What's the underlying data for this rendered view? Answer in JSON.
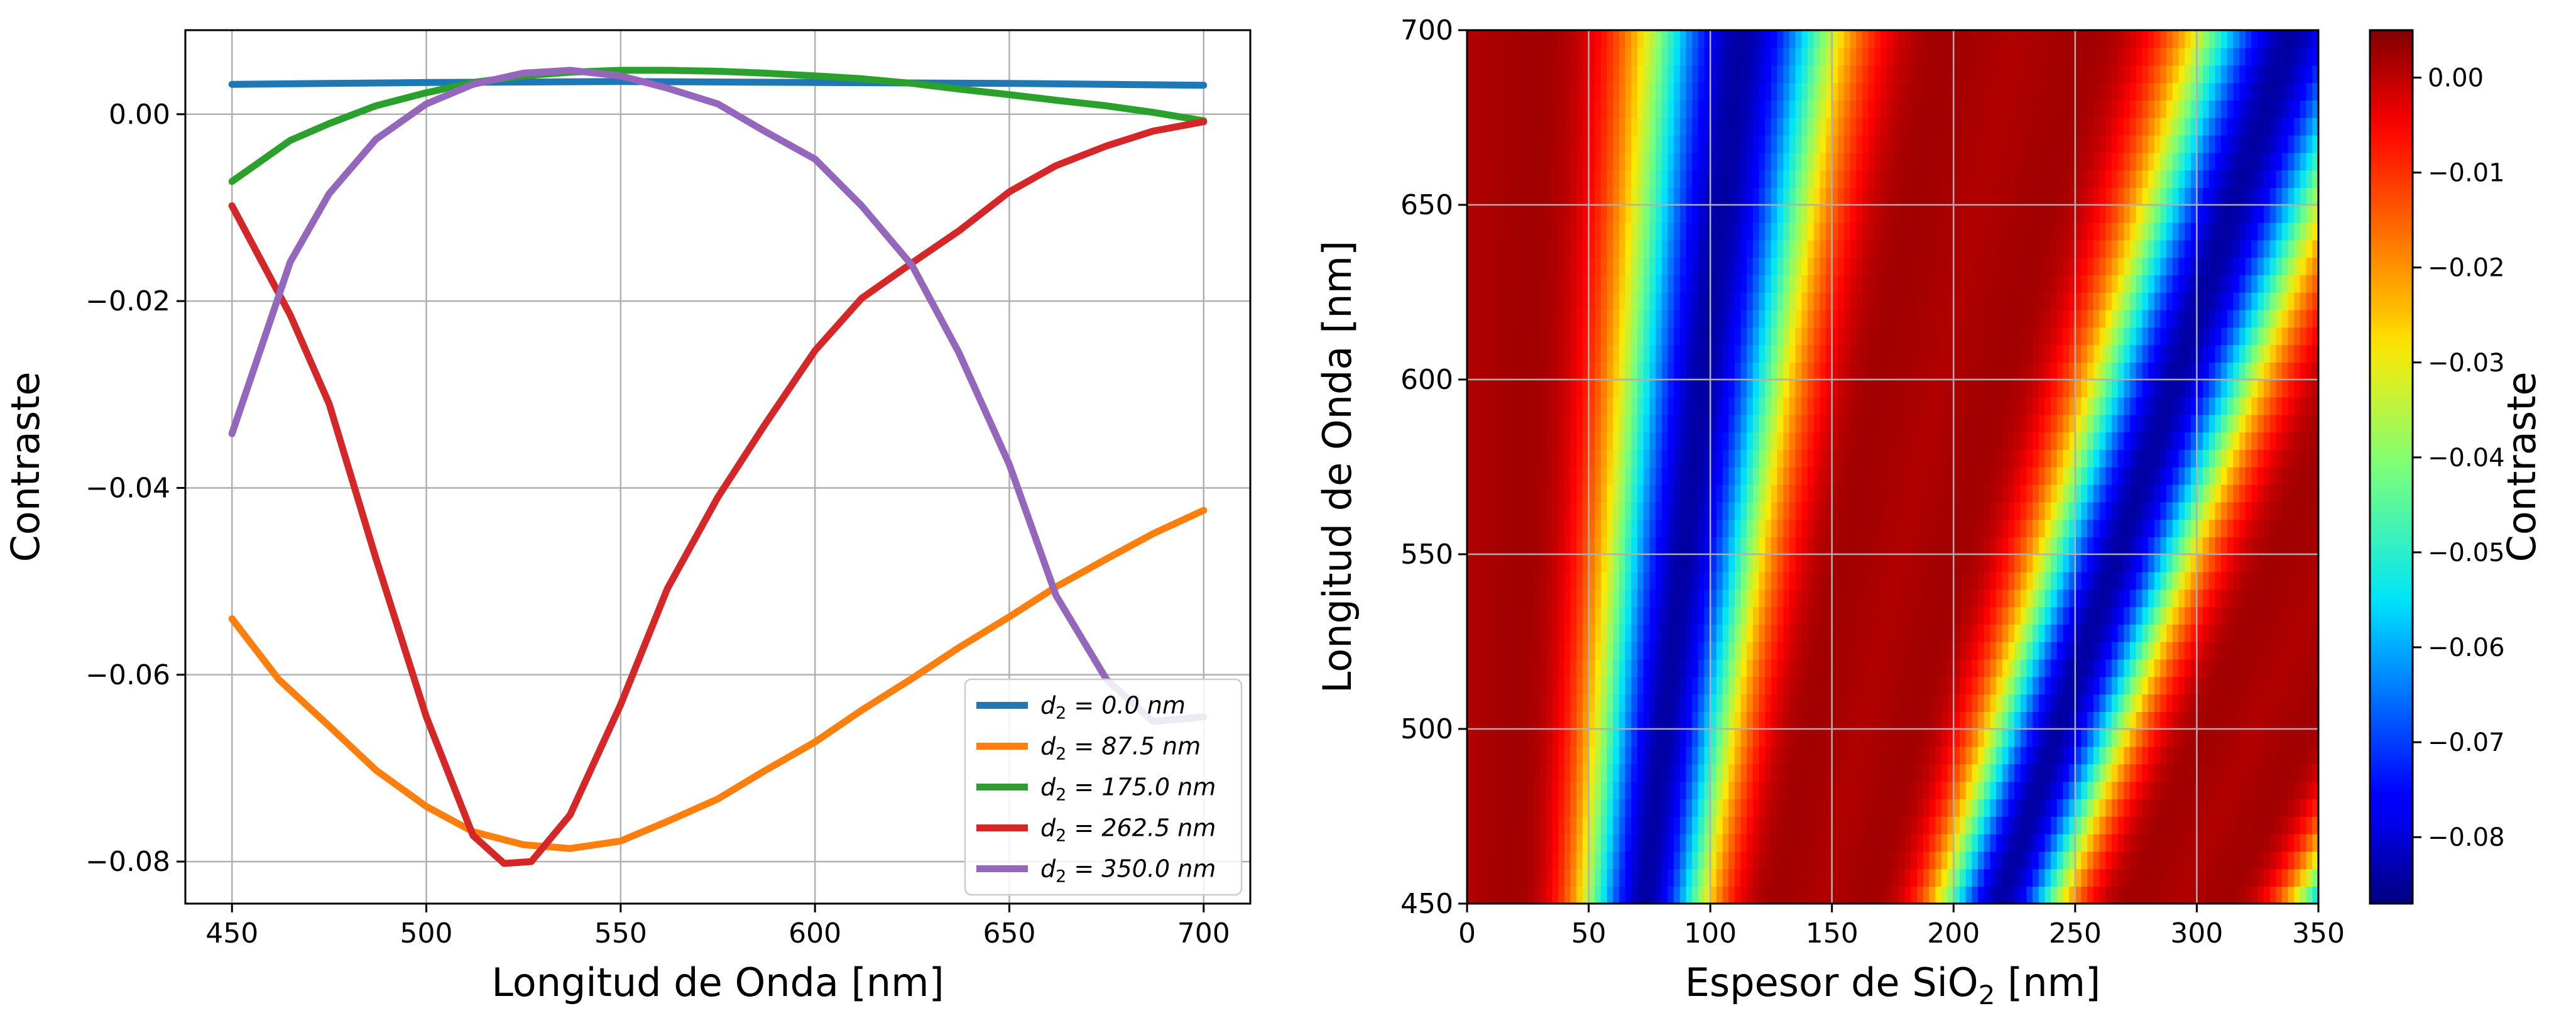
{
  "chart_data": [
    {
      "type": "line",
      "xlabel": "Longitud de Onda [nm]",
      "ylabel": "Contraste",
      "xlim": [
        438,
        712
      ],
      "ylim": [
        -0.0845,
        0.009
      ],
      "xticks": [
        450,
        500,
        550,
        600,
        650,
        700
      ],
      "xtick_labels": [
        "450",
        "500",
        "550",
        "600",
        "650",
        "700"
      ],
      "yticks": [
        0.0,
        -0.02,
        -0.04,
        -0.06,
        -0.08
      ],
      "ytick_labels": [
        "0.00",
        "−0.02",
        "−0.04",
        "−0.06",
        "−0.08"
      ],
      "grid": true,
      "legend_position": "lower-right",
      "series": [
        {
          "name": "d₂ = 0.0 nm",
          "legend_base": "d",
          "legend_sub": "2",
          "legend_rest": " = 0.0 nm",
          "color": "#1f77b4",
          "x": [
            450,
            500,
            550,
            600,
            650,
            700
          ],
          "y": [
            0.0032,
            0.0034,
            0.0035,
            0.0034,
            0.0033,
            0.0031
          ]
        },
        {
          "name": "d₂ = 87.5 nm",
          "legend_base": "d",
          "legend_sub": "2",
          "legend_rest": " = 87.5 nm",
          "color": "#ff7f0e",
          "x": [
            450,
            462,
            475,
            487,
            500,
            512,
            525,
            537,
            550,
            562,
            575,
            587,
            600,
            612,
            625,
            637,
            650,
            662,
            675,
            687,
            700
          ],
          "y": [
            -0.054,
            -0.0605,
            -0.0655,
            -0.0702,
            -0.0741,
            -0.0768,
            -0.0782,
            -0.0786,
            -0.0778,
            -0.0757,
            -0.0733,
            -0.0703,
            -0.0672,
            -0.0638,
            -0.0604,
            -0.0571,
            -0.0538,
            -0.0506,
            -0.0476,
            -0.0449,
            -0.0424
          ]
        },
        {
          "name": "d₂ = 175.0 nm",
          "legend_base": "d",
          "legend_sub": "2",
          "legend_rest": " = 175.0 nm",
          "color": "#2ca02c",
          "x": [
            450,
            465,
            475,
            487,
            500,
            512,
            525,
            537,
            550,
            562,
            575,
            587,
            600,
            612,
            625,
            637,
            650,
            662,
            675,
            687,
            700
          ],
          "y": [
            -0.0072,
            -0.0028,
            -0.001,
            0.0009,
            0.0023,
            0.0034,
            0.0041,
            0.0045,
            0.0047,
            0.0047,
            0.0046,
            0.0044,
            0.0041,
            0.0038,
            0.0033,
            0.0027,
            0.0021,
            0.0015,
            0.0009,
            0.0002,
            -0.0007
          ]
        },
        {
          "name": "d₂ = 262.5 nm",
          "legend_base": "d",
          "legend_sub": "2",
          "legend_rest": " = 262.5 nm",
          "color": "#d62728",
          "x": [
            450,
            465,
            475,
            487,
            500,
            512,
            520,
            527,
            537,
            550,
            562,
            575,
            587,
            600,
            612,
            625,
            637,
            650,
            662,
            675,
            687,
            700
          ],
          "y": [
            -0.0098,
            -0.0215,
            -0.031,
            -0.0475,
            -0.0645,
            -0.0772,
            -0.0802,
            -0.08,
            -0.075,
            -0.0632,
            -0.0508,
            -0.041,
            -0.0333,
            -0.0253,
            -0.0197,
            -0.0159,
            -0.0125,
            -0.0083,
            -0.0055,
            -0.0034,
            -0.0018,
            -0.0008
          ]
        },
        {
          "name": "d₂ = 350.0 nm",
          "legend_base": "d",
          "legend_sub": "2",
          "legend_rest": " = 350.0 nm",
          "color": "#9467bd",
          "x": [
            450,
            465,
            475,
            487,
            500,
            512,
            525,
            537,
            550,
            562,
            575,
            587,
            600,
            612,
            625,
            637,
            650,
            662,
            675,
            687,
            700
          ],
          "y": [
            -0.0342,
            -0.0158,
            -0.0085,
            -0.0027,
            0.0011,
            0.0032,
            0.0044,
            0.0047,
            0.0041,
            0.0028,
            0.0011,
            -0.0018,
            -0.0048,
            -0.0098,
            -0.0162,
            -0.0255,
            -0.0375,
            -0.0515,
            -0.0605,
            -0.065,
            -0.0645
          ]
        }
      ]
    },
    {
      "type": "heatmap",
      "xlabel_main": "Espesor de SiO",
      "xlabel_sub": "2",
      "xlabel_tail": " [nm]",
      "ylabel": "Longitud de Onda [nm]",
      "xlim": [
        0,
        350
      ],
      "ylim": [
        450,
        700
      ],
      "xticks": [
        0,
        50,
        100,
        150,
        200,
        250,
        300,
        350
      ],
      "xtick_labels": [
        "0",
        "50",
        "100",
        "150",
        "200",
        "250",
        "300",
        "350"
      ],
      "yticks": [
        450,
        500,
        550,
        600,
        650,
        700
      ],
      "ytick_labels": [
        "450",
        "500",
        "550",
        "600",
        "650",
        "700"
      ],
      "grid": true,
      "colormap": "jet",
      "value_range": [
        -0.087,
        0.005
      ],
      "band_model": "contrast bands at constant optical thickness; minima follow thickness proportional to wavelength",
      "minima_lines": [
        {
          "thickness_at_450": 73,
          "thickness_at_700": 113
        },
        {
          "thickness_at_450": 228,
          "thickness_at_700": 340
        }
      ],
      "colorbar": {
        "label": "Contraste",
        "ticks": [
          0.0,
          -0.01,
          -0.02,
          -0.03,
          -0.04,
          -0.05,
          -0.06,
          -0.07,
          -0.08
        ],
        "tick_labels": [
          "0.00",
          "−0.01",
          "−0.02",
          "−0.03",
          "−0.04",
          "−0.05",
          "−0.06",
          "−0.07",
          "−0.08"
        ]
      }
    }
  ]
}
